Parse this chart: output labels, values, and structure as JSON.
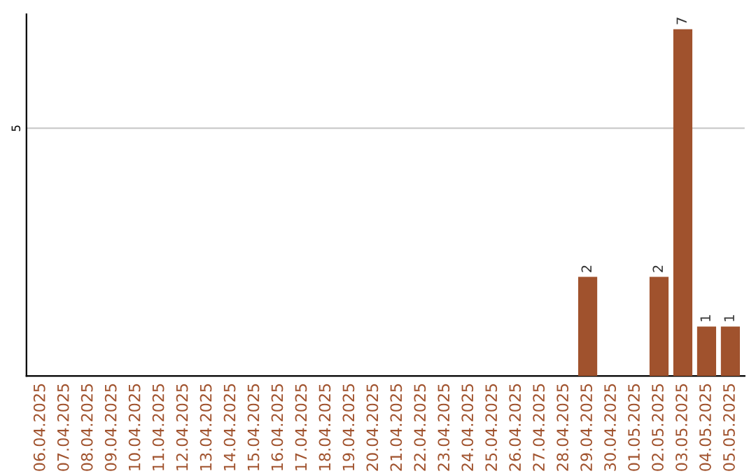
{
  "chart_data": {
    "type": "bar",
    "categories": [
      "06.04.2025",
      "07.04.2025",
      "08.04.2025",
      "09.04.2025",
      "10.04.2025",
      "11.04.2025",
      "12.04.2025",
      "13.04.2025",
      "14.04.2025",
      "15.04.2025",
      "16.04.2025",
      "17.04.2025",
      "18.04.2025",
      "19.04.2025",
      "20.04.2025",
      "21.04.2025",
      "22.04.2025",
      "23.04.2025",
      "24.04.2025",
      "25.04.2025",
      "26.04.2025",
      "27.04.2025",
      "28.04.2025",
      "29.04.2025",
      "30.04.2025",
      "01.05.2025",
      "02.05.2025",
      "03.05.2025",
      "04.05.2025",
      "05.05.2025"
    ],
    "values": [
      null,
      null,
      null,
      null,
      null,
      null,
      null,
      null,
      null,
      null,
      null,
      null,
      null,
      null,
      null,
      null,
      null,
      null,
      null,
      null,
      null,
      null,
      null,
      2,
      null,
      null,
      2,
      7,
      1,
      1
    ],
    "value_labels": [
      null,
      null,
      null,
      null,
      null,
      null,
      null,
      null,
      null,
      null,
      null,
      null,
      null,
      null,
      null,
      null,
      null,
      null,
      null,
      null,
      null,
      null,
      null,
      "2",
      null,
      null,
      "2",
      "7",
      "1",
      "1"
    ],
    "color": "#a0522d",
    "ylim": [
      0,
      7.3
    ],
    "yticks": [
      5
    ],
    "grid": "y"
  }
}
